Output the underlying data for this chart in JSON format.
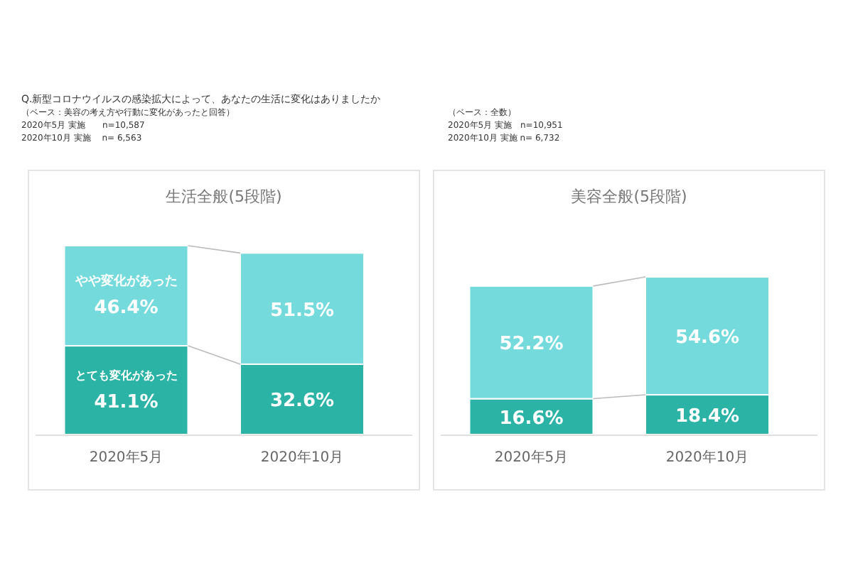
{
  "chart_data": [
    {
      "type": "bar",
      "stacked": true,
      "title": "生活全般(5段階)",
      "categories": [
        "2020年5月",
        "2020年10月"
      ],
      "annotations": [
        "Q.新型コロナウイルスの感染拡大によって、あなたの生活に変化はありましたか",
        "（ベース：美容の考え方や行動に変化があったと回答）",
        "2020年5月 実施　　n=10,587",
        "2020年10月 実施　 n= 6,563"
      ],
      "series": [
        {
          "name": "とても変化があった",
          "color": "#2bb3a6",
          "values": [
            41.1,
            32.6
          ],
          "value_labels": [
            "41.1%",
            "32.6%"
          ]
        },
        {
          "name": "やや変化があった",
          "color": "#74dadb",
          "values": [
            46.4,
            51.5
          ],
          "value_labels": [
            "46.4%",
            "51.5%"
          ]
        }
      ]
    },
    {
      "type": "bar",
      "stacked": true,
      "title": "美容全般(5段階)",
      "categories": [
        "2020年5月",
        "2020年10月"
      ],
      "annotations": [
        "（ベース：全数）",
        "2020年5月 実施　n=10,951",
        "2020年10月 実施 n= 6,732"
      ],
      "series": [
        {
          "color": "#2bb3a6",
          "values": [
            16.6,
            18.4
          ],
          "value_labels": [
            "16.6%",
            "18.4%"
          ]
        },
        {
          "color": "#74dadb",
          "values": [
            52.2,
            54.6
          ],
          "value_labels": [
            "52.2%",
            "54.6%"
          ]
        }
      ]
    }
  ]
}
